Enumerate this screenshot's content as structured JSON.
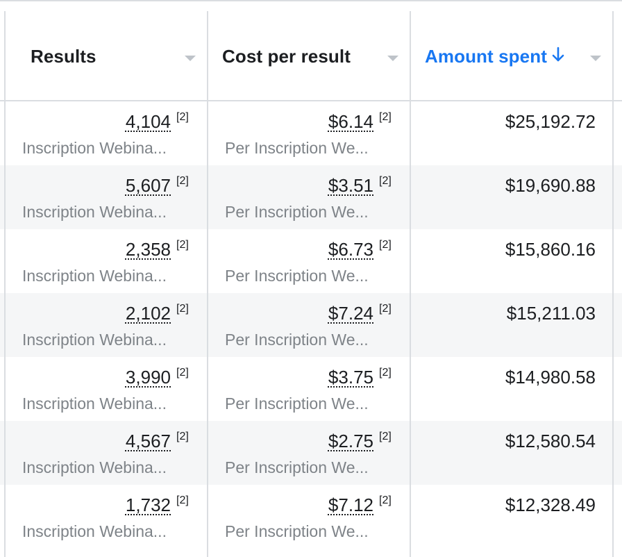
{
  "header": {
    "results_label": "Results",
    "cost_label": "Cost per result",
    "amount_label": "Amount spent",
    "amount_sort_icon": "arrow-down-icon"
  },
  "colors": {
    "accent": "#1877f2",
    "border": "#dadde1",
    "row_alt": "#f5f6f7",
    "muted_text": "#7e8388"
  },
  "rows": [
    {
      "results": "4,104",
      "results_note": "[2]",
      "results_sub": "Inscription Webina...",
      "cost": "$6.14",
      "cost_note": "[2]",
      "cost_sub": "Per Inscription We...",
      "amount": "$25,192.72"
    },
    {
      "results": "5,607",
      "results_note": "[2]",
      "results_sub": "Inscription Webina...",
      "cost": "$3.51",
      "cost_note": "[2]",
      "cost_sub": "Per Inscription We...",
      "amount": "$19,690.88"
    },
    {
      "results": "2,358",
      "results_note": "[2]",
      "results_sub": "Inscription Webina...",
      "cost": "$6.73",
      "cost_note": "[2]",
      "cost_sub": "Per Inscription We...",
      "amount": "$15,860.16"
    },
    {
      "results": "2,102",
      "results_note": "[2]",
      "results_sub": "Inscription Webina...",
      "cost": "$7.24",
      "cost_note": "[2]",
      "cost_sub": "Per Inscription We...",
      "amount": "$15,211.03"
    },
    {
      "results": "3,990",
      "results_note": "[2]",
      "results_sub": "Inscription Webina...",
      "cost": "$3.75",
      "cost_note": "[2]",
      "cost_sub": "Per Inscription We...",
      "amount": "$14,980.58"
    },
    {
      "results": "4,567",
      "results_note": "[2]",
      "results_sub": "Inscription Webina...",
      "cost": "$2.75",
      "cost_note": "[2]",
      "cost_sub": "Per Inscription We...",
      "amount": "$12,580.54"
    },
    {
      "results": "1,732",
      "results_note": "[2]",
      "results_sub": "Inscription Webina...",
      "cost": "$7.12",
      "cost_note": "[2]",
      "cost_sub": "Per Inscription We...",
      "amount": "$12,328.49"
    }
  ]
}
